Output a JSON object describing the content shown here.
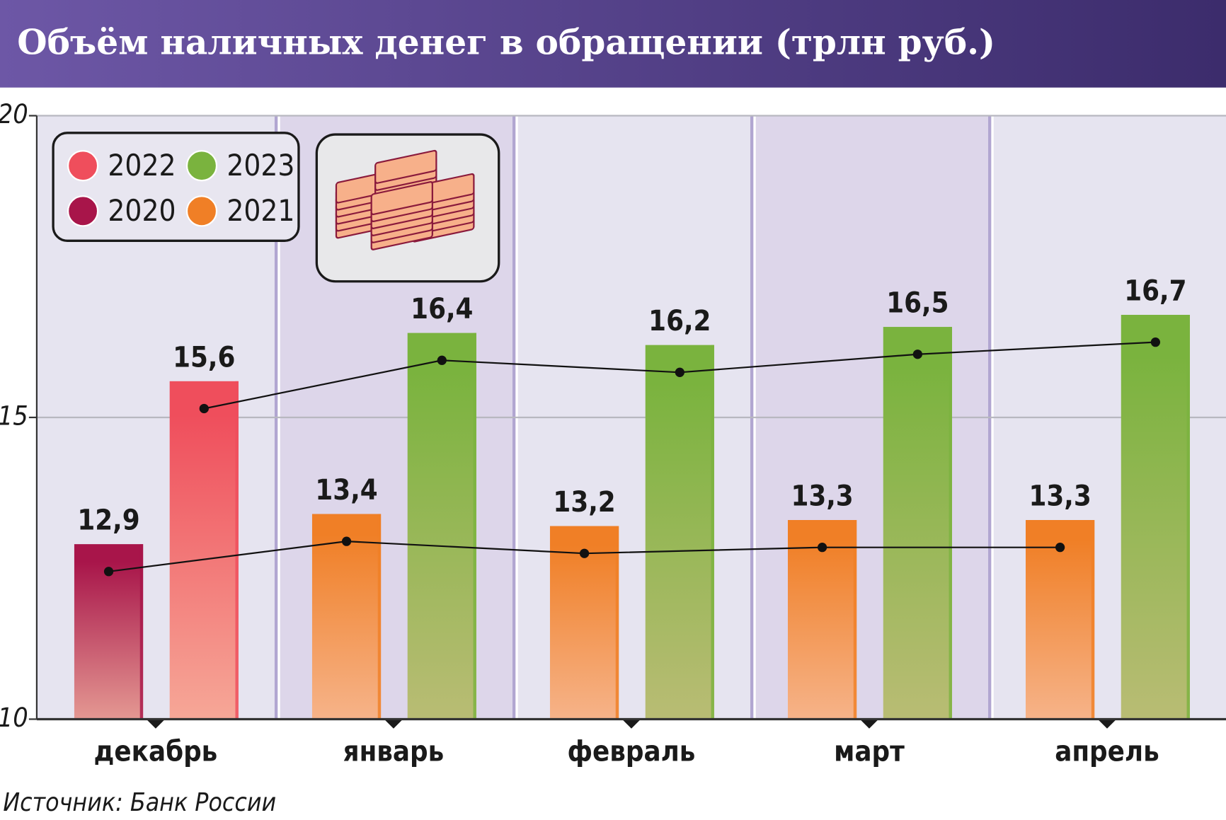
{
  "chart_data": {
    "type": "bar",
    "title": "Объём наличных денег в обращении (трлн руб.)",
    "source": "Источник: Банк России",
    "categories": [
      "декабрь",
      "январь",
      "февраль",
      "март",
      "апрель"
    ],
    "series": [
      {
        "name": "2020",
        "color": "#a8154a",
        "values": [
          12.9,
          null,
          null,
          null,
          null
        ],
        "value_labels": [
          "12,9",
          null,
          null,
          null,
          null
        ]
      },
      {
        "name": "2021",
        "color": "#f07f26",
        "values": [
          null,
          13.4,
          13.2,
          13.3,
          13.3
        ],
        "value_labels": [
          null,
          "13,4",
          "13,2",
          "13,3",
          "13,3"
        ]
      },
      {
        "name": "2022",
        "color": "#ef4e5c",
        "values": [
          15.6,
          null,
          null,
          null,
          null
        ],
        "value_labels": [
          "15,6",
          null,
          null,
          null,
          null
        ]
      },
      {
        "name": "2023",
        "color": "#7ab33e",
        "values": [
          null,
          16.4,
          16.2,
          16.5,
          16.7
        ],
        "value_labels": [
          null,
          "16,4",
          "16,2",
          "16,5",
          "16,7"
        ]
      }
    ],
    "ylim": [
      10,
      20
    ],
    "yticks": [
      10,
      15,
      20
    ],
    "grid": true
  }
}
